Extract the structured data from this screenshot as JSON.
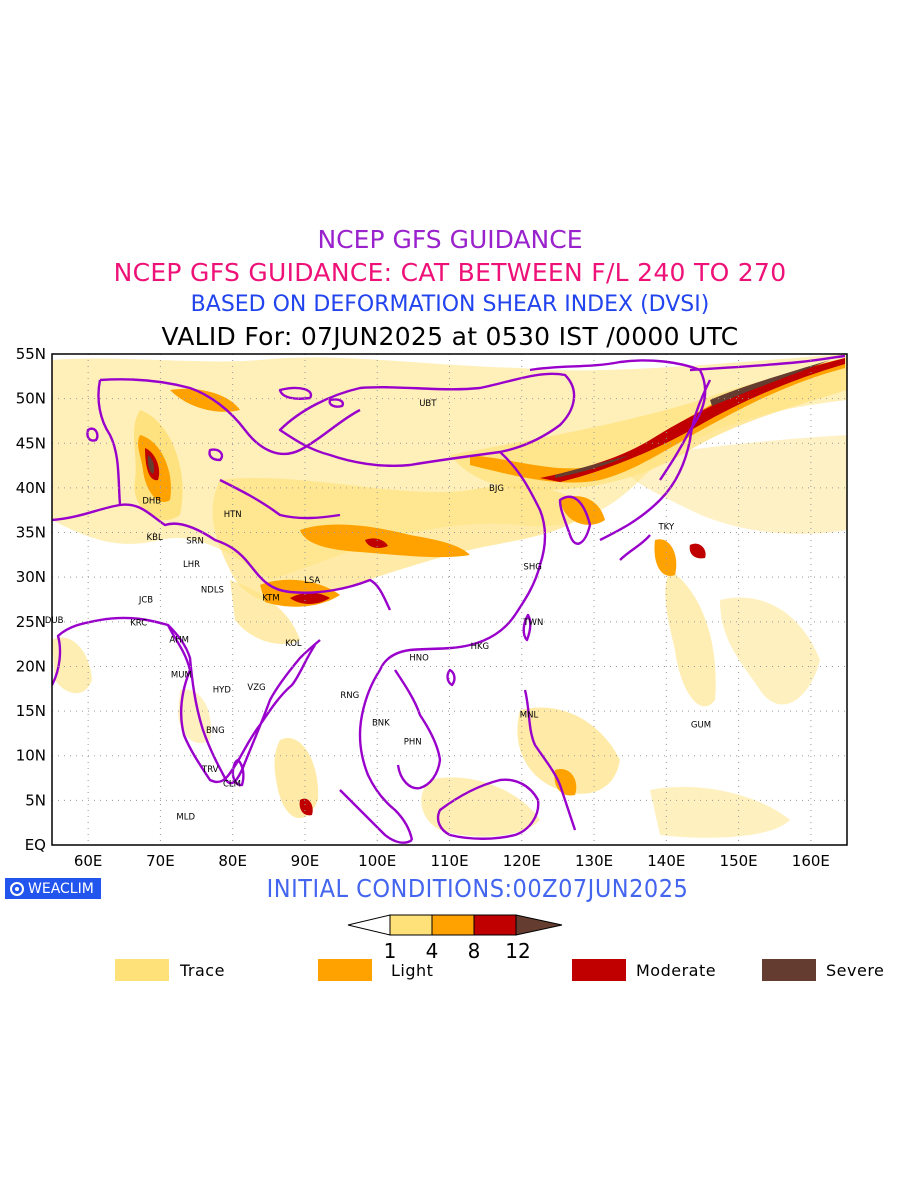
{
  "titles": {
    "line1": "NCEP GFS GUIDANCE",
    "line2": "NCEP GFS GUIDANCE: CAT BETWEEN F/L 240 TO 270",
    "line3": "BASED ON DEFORMATION SHEAR INDEX (DVSI)",
    "line4": "VALID For: 07JUN2025 at 0530 IST /0000 UTC"
  },
  "colors": {
    "title1": "#9922cc",
    "title2": "#ee1177",
    "title3": "#2244ee",
    "init": "#4466ee",
    "border": "#9900cc",
    "trace": "#ffe17a",
    "light": "#ffa200",
    "moderate": "#c00000",
    "severe": "#643c30"
  },
  "map": {
    "lat_labels": [
      "55N",
      "50N",
      "45N",
      "40N",
      "35N",
      "30N",
      "25N",
      "20N",
      "15N",
      "10N",
      "5N",
      "EQ"
    ],
    "lon_labels": [
      "60E",
      "70E",
      "80E",
      "90E",
      "100E",
      "110E",
      "120E",
      "130E",
      "140E",
      "150E",
      "160E"
    ],
    "lat_range": [
      0,
      55
    ],
    "lon_range": [
      55,
      165
    ],
    "grid": "dotted",
    "stations": [
      {
        "code": "UBT",
        "lon": 107,
        "lat": 49.5
      },
      {
        "code": "BJG",
        "lon": 116.5,
        "lat": 40
      },
      {
        "code": "TKY",
        "lon": 140,
        "lat": 35.7
      },
      {
        "code": "SHG",
        "lon": 121.5,
        "lat": 31.2
      },
      {
        "code": "TWN",
        "lon": 121.6,
        "lat": 25
      },
      {
        "code": "HKG",
        "lon": 114.2,
        "lat": 22.3
      },
      {
        "code": "HNO",
        "lon": 105.8,
        "lat": 21
      },
      {
        "code": "RNG",
        "lon": 96.2,
        "lat": 16.8
      },
      {
        "code": "BNK",
        "lon": 100.5,
        "lat": 13.7
      },
      {
        "code": "PHN",
        "lon": 104.9,
        "lat": 11.6
      },
      {
        "code": "MNL",
        "lon": 121,
        "lat": 14.6
      },
      {
        "code": "GUM",
        "lon": 144.8,
        "lat": 13.5
      },
      {
        "code": "LSA",
        "lon": 91,
        "lat": 29.7
      },
      {
        "code": "KTM",
        "lon": 85.3,
        "lat": 27.7
      },
      {
        "code": "KOL",
        "lon": 88.4,
        "lat": 22.6
      },
      {
        "code": "HTN",
        "lon": 80,
        "lat": 37.1
      },
      {
        "code": "DHB",
        "lon": 68.8,
        "lat": 38.6
      },
      {
        "code": "KBL",
        "lon": 69.2,
        "lat": 34.5
      },
      {
        "code": "SRN",
        "lon": 74.8,
        "lat": 34.1
      },
      {
        "code": "LHR",
        "lon": 74.3,
        "lat": 31.5
      },
      {
        "code": "NDLS",
        "lon": 77.2,
        "lat": 28.6
      },
      {
        "code": "JCB",
        "lon": 68,
        "lat": 27.5
      },
      {
        "code": "KRC",
        "lon": 67,
        "lat": 24.9
      },
      {
        "code": "DUB",
        "lon": 55.3,
        "lat": 25.2
      },
      {
        "code": "AHM",
        "lon": 72.6,
        "lat": 23
      },
      {
        "code": "MUM",
        "lon": 72.9,
        "lat": 19.1
      },
      {
        "code": "HYD",
        "lon": 78.5,
        "lat": 17.4
      },
      {
        "code": "VZG",
        "lon": 83.3,
        "lat": 17.7
      },
      {
        "code": "BNG",
        "lon": 77.6,
        "lat": 12.9
      },
      {
        "code": "TRV",
        "lon": 76.9,
        "lat": 8.5
      },
      {
        "code": "CLM",
        "lon": 79.9,
        "lat": 6.9
      },
      {
        "code": "MLD",
        "lon": 73.5,
        "lat": 3.2
      }
    ]
  },
  "init_label": "INITIAL CONDITIONS:00Z07JUN2025",
  "badge": "WEACLIM",
  "colorbar": {
    "ticks": [
      "1",
      "4",
      "8",
      "12"
    ]
  },
  "legend": [
    {
      "label": "Trace",
      "color": "#ffe17a"
    },
    {
      "label": "Light",
      "color": "#ffa200"
    },
    {
      "label": "Moderate",
      "color": "#c00000"
    },
    {
      "label": "Severe",
      "color": "#643c30"
    }
  ]
}
